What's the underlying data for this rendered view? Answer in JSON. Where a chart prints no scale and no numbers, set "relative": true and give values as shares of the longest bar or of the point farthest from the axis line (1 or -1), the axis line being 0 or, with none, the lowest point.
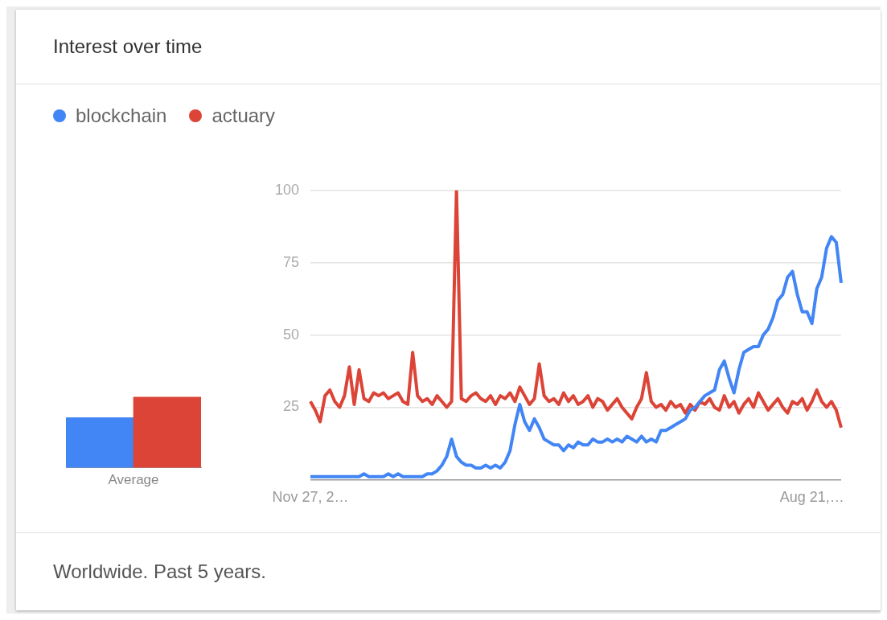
{
  "chart_data": [
    {
      "type": "bar",
      "relative": true,
      "categories": [
        null,
        null
      ],
      "xlabel": "Average",
      "values": [
        0.71,
        1
      ],
      "colors": [
        "#4285f4",
        "#db4437"
      ]
    },
    {
      "type": "line",
      "title": "Interest over time",
      "annotations": [
        "Worldwide. Past 5 years."
      ],
      "categories": [
        "Nov 27, 2…",
        null,
        null,
        null,
        null,
        null,
        null,
        null,
        null,
        null,
        null,
        null,
        null,
        null,
        null,
        null,
        null,
        null,
        null,
        null,
        null,
        null,
        null,
        null,
        null,
        null,
        null,
        null,
        null,
        null,
        null,
        null,
        null,
        null,
        null,
        null,
        null,
        null,
        null,
        null,
        null,
        null,
        null,
        null,
        null,
        null,
        null,
        null,
        null,
        null,
        null,
        null,
        null,
        null,
        null,
        null,
        null,
        null,
        null,
        null,
        null,
        null,
        null,
        null,
        null,
        null,
        null,
        null,
        null,
        null,
        null,
        null,
        null,
        null,
        null,
        null,
        null,
        null,
        null,
        null,
        null,
        null,
        null,
        null,
        null,
        null,
        null,
        null,
        null,
        null,
        null,
        null,
        null,
        null,
        null,
        null,
        null,
        null,
        null,
        null,
        null,
        null,
        null,
        "Aug 21,…",
        null,
        null,
        null,
        null,
        null,
        null
      ],
      "series": [
        {
          "name": "blockchain",
          "color": "#4285f4",
          "values": [
            1,
            1,
            1,
            1,
            1,
            1,
            1,
            1,
            1,
            1,
            1,
            2,
            1,
            1,
            1,
            1,
            2,
            1,
            2,
            1,
            1,
            1,
            1,
            1,
            2,
            2,
            3,
            5,
            8,
            14,
            8,
            6,
            5,
            5,
            4,
            4,
            5,
            4,
            5,
            4,
            6,
            10,
            19,
            26,
            20,
            17,
            21,
            18,
            14,
            13,
            12,
            12,
            10,
            12,
            11,
            13,
            12,
            12,
            14,
            13,
            13,
            14,
            13,
            14,
            13,
            15,
            14,
            13,
            15,
            13,
            14,
            13,
            17,
            17,
            18,
            19,
            20,
            21,
            24,
            25,
            27,
            29,
            30,
            31,
            38,
            41,
            35,
            30,
            38,
            44,
            45,
            46,
            46,
            50,
            52,
            56,
            62,
            64,
            70,
            72,
            64,
            58,
            58,
            54,
            66,
            70,
            80,
            84,
            82,
            68
          ]
        },
        {
          "name": "actuary",
          "color": "#db4437",
          "values": [
            27,
            24,
            20,
            29,
            31,
            27,
            25,
            29,
            39,
            26,
            38,
            28,
            27,
            30,
            29,
            30,
            28,
            29,
            30,
            27,
            26,
            44,
            29,
            27,
            28,
            26,
            29,
            27,
            25,
            27,
            100,
            28,
            27,
            29,
            30,
            28,
            27,
            29,
            26,
            29,
            28,
            30,
            27,
            32,
            29,
            26,
            28,
            40,
            29,
            27,
            28,
            26,
            30,
            27,
            29,
            26,
            27,
            29,
            25,
            28,
            27,
            24,
            26,
            28,
            25,
            23,
            21,
            25,
            28,
            37,
            27,
            25,
            26,
            24,
            27,
            25,
            26,
            23,
            26,
            24,
            27,
            26,
            28,
            25,
            24,
            29,
            25,
            27,
            23,
            26,
            28,
            25,
            30,
            27,
            24,
            26,
            28,
            25,
            23,
            27,
            26,
            28,
            24,
            27,
            31,
            27,
            25,
            27,
            24,
            18
          ]
        }
      ],
      "ylim": [
        0,
        100
      ],
      "yticks": [
        {
          "value": 0,
          "label": null
        },
        25,
        50,
        75,
        100
      ],
      "grid": "y",
      "legend": "top left",
      "marker": "none",
      "line_style": "solid"
    }
  ]
}
